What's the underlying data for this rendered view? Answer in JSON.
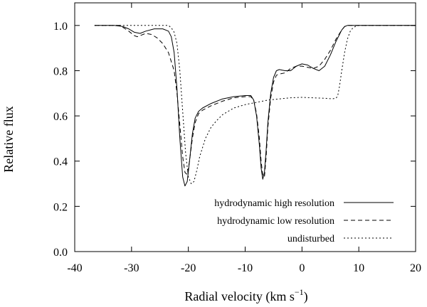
{
  "chart_data": {
    "type": "line",
    "title": "",
    "xlabel": "Radial velocity (km s⁻¹)",
    "xlabel_main": "Radial velocity (km s",
    "xlabel_exp": "−1",
    "xlabel_close": ")",
    "ylabel": "Relative flux",
    "xlim": [
      -40,
      20
    ],
    "ylim": [
      0,
      1.1
    ],
    "xticks": [
      -40,
      -30,
      -20,
      -10,
      0,
      10,
      20
    ],
    "yticks": [
      0.0,
      0.2,
      0.4,
      0.6,
      0.8,
      1.0
    ],
    "xtick_labels": [
      "-40",
      "-30",
      "-20",
      "-10",
      "0",
      "10",
      "20"
    ],
    "ytick_labels": [
      "0.0",
      "0.2",
      "0.4",
      "0.6",
      "0.8",
      "1.0"
    ],
    "grid": false,
    "legend_position": "bottom-right",
    "series": [
      {
        "name": "hydrodynamic high resolution",
        "style": "solid",
        "x": [
          -36.5,
          -33,
          -31.5,
          -30.5,
          -29.5,
          -28.5,
          -27.5,
          -26,
          -24.5,
          -23.5,
          -23,
          -22.5,
          -22,
          -21.5,
          -21,
          -20.6,
          -20.2,
          -19.8,
          -19.3,
          -18.8,
          -18.2,
          -17.5,
          -16,
          -14,
          -12,
          -10,
          -9,
          -8.5,
          -8,
          -7.5,
          -7.2,
          -6.9,
          -6.6,
          -6.3,
          -6,
          -5.5,
          -5,
          -4.5,
          -4,
          -3,
          -2,
          -1,
          0,
          1,
          2,
          3,
          4,
          5,
          6,
          7,
          7.5,
          8,
          9,
          12,
          20
        ],
        "y": [
          1.0,
          1.0,
          0.995,
          0.985,
          0.97,
          0.965,
          0.975,
          0.985,
          0.985,
          0.975,
          0.95,
          0.88,
          0.72,
          0.5,
          0.33,
          0.29,
          0.31,
          0.4,
          0.52,
          0.59,
          0.62,
          0.635,
          0.655,
          0.675,
          0.685,
          0.69,
          0.69,
          0.67,
          0.6,
          0.47,
          0.37,
          0.32,
          0.35,
          0.45,
          0.57,
          0.7,
          0.77,
          0.8,
          0.805,
          0.8,
          0.8,
          0.82,
          0.83,
          0.825,
          0.81,
          0.8,
          0.82,
          0.87,
          0.93,
          0.98,
          0.995,
          1.0,
          1.0,
          1.0,
          1.0
        ]
      },
      {
        "name": "hydrodynamic low resolution",
        "style": "dashed",
        "x": [
          -36.5,
          -32,
          -30.5,
          -29.5,
          -29,
          -28.5,
          -27.5,
          -26.5,
          -25.5,
          -24.5,
          -23.5,
          -22.5,
          -22,
          -21.5,
          -21,
          -20.6,
          -20.2,
          -19.8,
          -19.3,
          -18.8,
          -18.2,
          -17.5,
          -16,
          -14,
          -12,
          -10,
          -9,
          -8.5,
          -8,
          -7.5,
          -7.2,
          -6.9,
          -6.6,
          -6.3,
          -6,
          -5.5,
          -5,
          -4.5,
          -4,
          -3,
          -2,
          -1,
          0,
          1,
          2,
          3,
          4,
          5,
          6,
          7,
          7.5,
          8,
          9,
          12,
          20
        ],
        "y": [
          1.0,
          1.0,
          0.975,
          0.955,
          0.95,
          0.955,
          0.965,
          0.96,
          0.945,
          0.92,
          0.88,
          0.8,
          0.7,
          0.56,
          0.42,
          0.35,
          0.34,
          0.4,
          0.5,
          0.57,
          0.61,
          0.625,
          0.645,
          0.665,
          0.68,
          0.685,
          0.685,
          0.67,
          0.61,
          0.5,
          0.4,
          0.34,
          0.33,
          0.42,
          0.55,
          0.68,
          0.75,
          0.78,
          0.785,
          0.79,
          0.81,
          0.82,
          0.82,
          0.815,
          0.81,
          0.82,
          0.85,
          0.89,
          0.94,
          0.98,
          0.995,
          1.0,
          1.0,
          1.0,
          1.0
        ]
      },
      {
        "name": "undisturbed",
        "style": "dotted",
        "x": [
          -36.5,
          -25,
          -23.5,
          -23,
          -22.5,
          -22,
          -21.5,
          -21,
          -20.5,
          -20,
          -19.5,
          -19,
          -18.5,
          -18,
          -17,
          -16,
          -15,
          -14,
          -12,
          -10,
          -8,
          -6,
          -4,
          -2,
          0,
          2,
          3,
          4,
          5,
          5.5,
          6,
          6.3,
          6.6,
          7,
          7.5,
          8,
          8.5,
          9,
          9.5,
          10,
          12,
          20
        ],
        "y": [
          1.0,
          1.0,
          1.0,
          0.99,
          0.97,
          0.92,
          0.8,
          0.62,
          0.44,
          0.33,
          0.3,
          0.31,
          0.36,
          0.42,
          0.5,
          0.55,
          0.58,
          0.605,
          0.635,
          0.65,
          0.66,
          0.67,
          0.675,
          0.68,
          0.682,
          0.68,
          0.679,
          0.678,
          0.676,
          0.676,
          0.678,
          0.69,
          0.73,
          0.8,
          0.88,
          0.94,
          0.975,
          0.99,
          0.997,
          1.0,
          1.0,
          1.0
        ]
      }
    ]
  }
}
